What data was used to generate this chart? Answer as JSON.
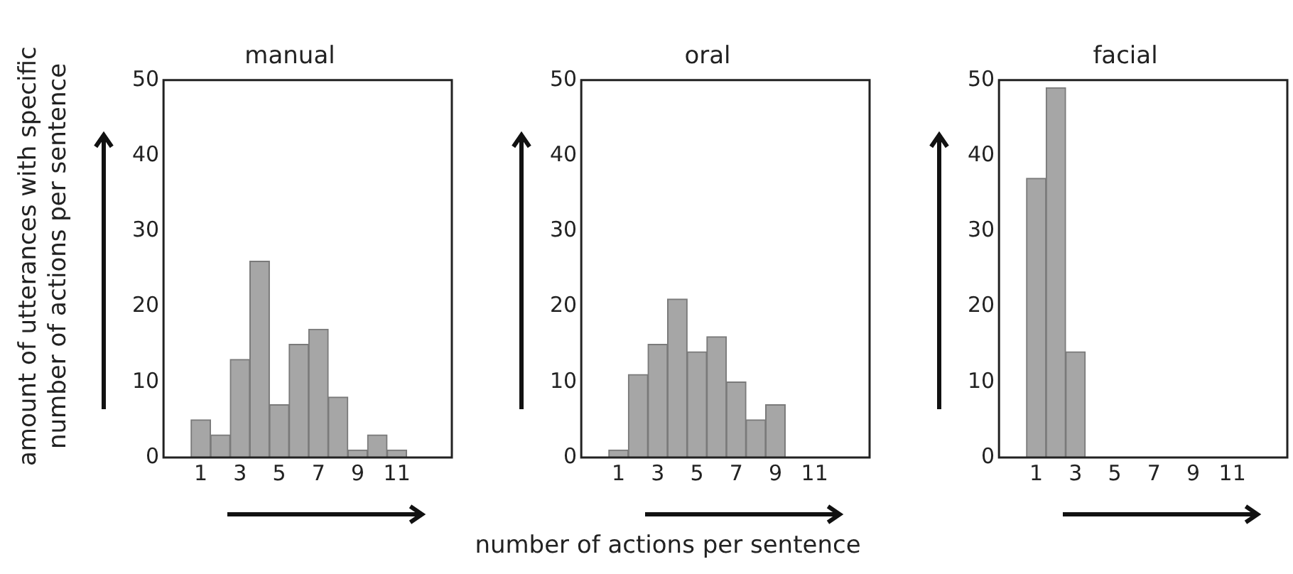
{
  "chart_data": [
    {
      "type": "histogram",
      "title": "manual",
      "ylabel": "amount of utterances with specific number of actions per sentence",
      "bins": [
        0.5,
        1.5,
        2.5,
        3.5,
        4.5,
        5.5,
        6.5,
        7.5,
        8.5,
        9.5,
        10.5,
        11.5
      ],
      "values": [
        5,
        3,
        13,
        26,
        7,
        15,
        17,
        8,
        1,
        3,
        1
      ],
      "color": "#a6a6a6",
      "xlim": [
        -0.9,
        13.8
      ],
      "xticks": [
        1,
        3,
        5,
        7,
        9,
        11
      ],
      "ylim": [
        0,
        50
      ],
      "yticks": [
        0,
        10,
        20,
        30,
        40,
        50
      ],
      "grid": false,
      "legend": false
    },
    {
      "type": "histogram",
      "title": "oral",
      "xlabel": "number of actions per sentence",
      "bins": [
        0.5,
        1.5,
        2.5,
        3.5,
        4.5,
        5.5,
        6.5,
        7.5,
        8.5,
        9.5
      ],
      "values": [
        1,
        11,
        15,
        21,
        14,
        16,
        10,
        5,
        7
      ],
      "color": "#a6a6a6",
      "xlim": [
        -0.9,
        13.8
      ],
      "xticks": [
        1,
        3,
        5,
        7,
        9,
        11
      ],
      "ylim": [
        0,
        50
      ],
      "yticks": [
        0,
        10,
        20,
        30,
        40,
        50
      ],
      "grid": false,
      "legend": false
    },
    {
      "type": "histogram",
      "title": "facial",
      "bins": [
        0.5,
        1.5,
        2.5,
        3.5
      ],
      "values": [
        37,
        49,
        14
      ],
      "color": "#a6a6a6",
      "xlim": [
        -0.9,
        13.8
      ],
      "xticks": [
        1,
        3,
        5,
        7,
        9,
        11
      ],
      "ylim": [
        0,
        50
      ],
      "yticks": [
        0,
        10,
        20,
        30,
        40,
        50
      ],
      "grid": false,
      "legend": false
    }
  ]
}
